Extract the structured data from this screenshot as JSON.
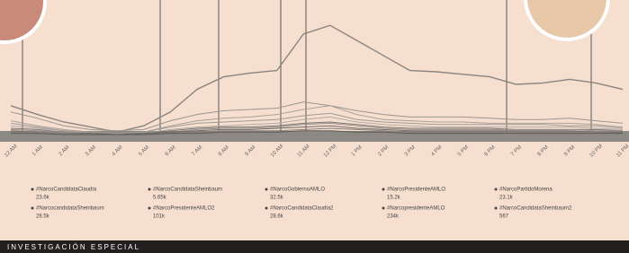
{
  "chart_data": {
    "type": "line",
    "categories": [
      "12 AM",
      "1 AM",
      "2 AM",
      "3 AM",
      "4 AM",
      "5 AM",
      "6 AM",
      "7 AM",
      "8 AM",
      "9 AM",
      "10 AM",
      "11 AM",
      "12 PM",
      "1 PM",
      "2 PM",
      "3 PM",
      "4 PM",
      "5 PM",
      "6 PM",
      "7 PM",
      "8 PM",
      "9 PM",
      "10 PM",
      "11 PM"
    ],
    "ylim": [
      0,
      100
    ],
    "series": [
      {
        "name": "#NarcoCandidataClaudia",
        "total": "23.6k",
        "color": "#8a8580",
        "values": [
          23,
          16,
          10,
          6,
          2,
          7,
          18,
          36,
          46,
          49,
          51,
          80,
          87,
          75,
          63,
          51,
          50,
          48,
          46,
          40,
          41,
          44,
          41,
          36
        ]
      },
      {
        "name": "#NarcocandidataSheinbaum",
        "total": "28.5k",
        "color": "#9a9590",
        "values": [
          18,
          13,
          7,
          4,
          3,
          4,
          11,
          16,
          19,
          20,
          21,
          26,
          23,
          19,
          16,
          14,
          14,
          14,
          13,
          12,
          12,
          13,
          11,
          9
        ]
      },
      {
        "name": "#NarcoCandidataSheinbaum",
        "total": "5.65k",
        "color": "#a8a29c",
        "values": [
          11,
          7,
          4,
          2,
          1,
          2,
          7,
          11,
          13,
          14,
          16,
          20,
          23,
          16,
          12,
          11,
          10,
          10,
          9,
          9,
          9,
          9,
          8,
          6
        ]
      },
      {
        "name": "#NarcoPresidenteAMLO2",
        "total": "101k",
        "color": "#b0aaa4",
        "values": [
          7,
          5,
          3,
          1,
          1,
          1,
          4,
          6,
          7,
          8,
          9,
          12,
          14,
          10,
          8,
          7,
          6,
          6,
          6,
          6,
          6,
          6,
          5,
          4
        ]
      },
      {
        "name": "#NarcoGobiernoAMLO",
        "total": "32.5k",
        "color": "#7a7570",
        "values": [
          5,
          4,
          2,
          1,
          1,
          1,
          3,
          5,
          6,
          6,
          7,
          9,
          10,
          8,
          6,
          5,
          5,
          5,
          5,
          4,
          4,
          4,
          4,
          3
        ]
      },
      {
        "name": "#NarcoCandidataClaudia2",
        "total": "28.6k",
        "color": "#96918c",
        "values": [
          4,
          3,
          2,
          1,
          0,
          1,
          2,
          4,
          5,
          5,
          6,
          8,
          9,
          7,
          5,
          4,
          4,
          4,
          4,
          4,
          4,
          4,
          3,
          3
        ]
      },
      {
        "name": "#NarcoPresidenteAMLO",
        "total": "15.2k",
        "color": "#6e6a66",
        "values": [
          3,
          2,
          1,
          1,
          0,
          1,
          2,
          3,
          4,
          4,
          5,
          6,
          7,
          5,
          4,
          3,
          3,
          3,
          3,
          3,
          3,
          3,
          2,
          2
        ]
      },
      {
        "name": "#NarcopresidenteAMLO",
        "total": "234k",
        "color": "#85807b",
        "values": [
          2,
          2,
          1,
          0,
          0,
          0,
          1,
          2,
          3,
          3,
          3,
          4,
          5,
          4,
          3,
          2,
          2,
          2,
          2,
          2,
          2,
          2,
          2,
          1
        ]
      },
      {
        "name": "#NarcoPartidoMorena",
        "total": "23.1k",
        "color": "#a09a95",
        "values": [
          9,
          6,
          3,
          2,
          1,
          2,
          6,
          9,
          10,
          11,
          12,
          15,
          17,
          12,
          10,
          9,
          8,
          8,
          8,
          8,
          8,
          7,
          7,
          5
        ]
      },
      {
        "name": "#NarcoCandidataSheinbaum2",
        "total": "567",
        "color": "#5e5a56",
        "values": [
          1,
          1,
          0,
          0,
          0,
          0,
          1,
          1,
          2,
          2,
          2,
          3,
          3,
          2,
          2,
          1,
          1,
          1,
          1,
          1,
          1,
          1,
          1,
          1
        ]
      }
    ],
    "footer": "INVESTIGACIÓN ESPECIAL"
  }
}
